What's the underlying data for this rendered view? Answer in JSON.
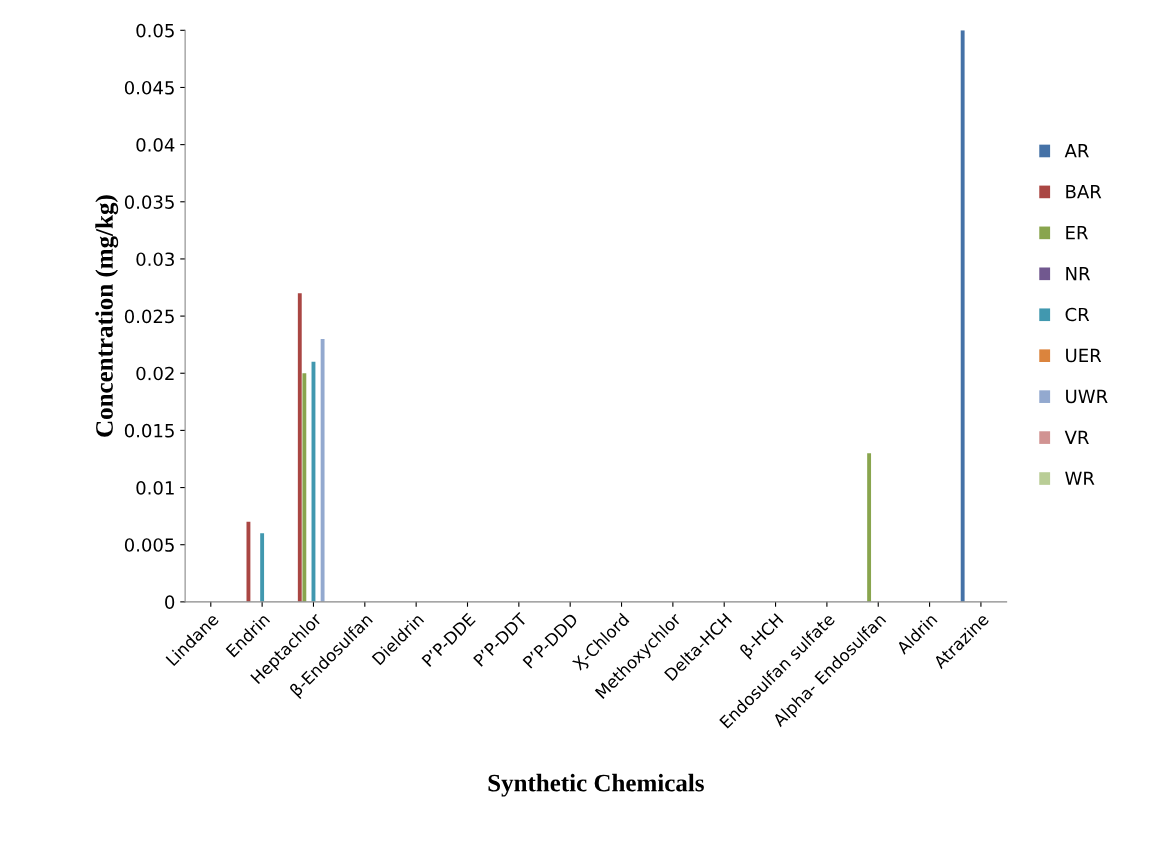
{
  "chart_data": {
    "type": "bar",
    "xlabel": "Synthetic Chemicals",
    "ylabel": "Concentration (mg/kg)",
    "categories": [
      "Lindane",
      "Endrin",
      "Heptachlor",
      "β-Endosulfan",
      "Dieldrin",
      "P’P-DDE",
      "P’P-DDT",
      "P’P-DDD",
      "Ӽ-Chlord",
      "Methoxychlor",
      "Delta-HCH",
      "β-HCH",
      "Endosulfan sulfate",
      "Alpha- Endosulfan",
      "Aldrin",
      "Atrazine"
    ],
    "series": [
      {
        "name": "AR",
        "color": "#4572a7",
        "values": [
          0,
          0,
          0,
          0,
          0,
          0,
          0,
          0,
          0,
          0,
          0,
          0,
          0,
          0,
          0,
          0.05
        ]
      },
      {
        "name": "BAR",
        "color": "#aa4643",
        "values": [
          0,
          0.007,
          0.027,
          0,
          0,
          0,
          0,
          0,
          0,
          0,
          0,
          0,
          0,
          0,
          0,
          0
        ]
      },
      {
        "name": "ER",
        "color": "#89a54e",
        "values": [
          0,
          0,
          0.02,
          0,
          0,
          0,
          0,
          0,
          0,
          0,
          0,
          0,
          0,
          0.013,
          0,
          0
        ]
      },
      {
        "name": "NR",
        "color": "#71588f",
        "values": [
          0,
          0,
          0,
          0,
          0,
          0,
          0,
          0,
          0,
          0,
          0,
          0,
          0,
          0,
          0,
          0
        ]
      },
      {
        "name": "CR",
        "color": "#4198af",
        "values": [
          0,
          0.006,
          0.021,
          0,
          0,
          0,
          0,
          0,
          0,
          0,
          0,
          0,
          0,
          0,
          0,
          0
        ]
      },
      {
        "name": "UER",
        "color": "#db843d",
        "values": [
          0,
          0,
          0,
          0,
          0,
          0,
          0,
          0,
          0,
          0,
          0,
          0,
          0,
          0,
          0,
          0
        ]
      },
      {
        "name": "UWR",
        "color": "#93a9cf",
        "values": [
          0,
          0,
          0.023,
          0,
          0,
          0,
          0,
          0,
          0,
          0,
          0,
          0,
          0,
          0,
          0,
          0
        ]
      },
      {
        "name": "VR",
        "color": "#d19392",
        "values": [
          0,
          0,
          0,
          0,
          0,
          0,
          0,
          0,
          0,
          0,
          0,
          0,
          0,
          0,
          0,
          0
        ]
      },
      {
        "name": "WR",
        "color": "#b9cd96",
        "values": [
          0,
          0,
          0,
          0,
          0,
          0,
          0,
          0,
          0,
          0,
          0,
          0,
          0,
          0,
          0,
          0
        ]
      }
    ],
    "ylim": [
      0,
      0.05
    ],
    "yticks": [
      0,
      0.005,
      0.01,
      0.015,
      0.02,
      0.025,
      0.03,
      0.035,
      0.04,
      0.045,
      0.05
    ],
    "grid": false,
    "legend": "right"
  }
}
